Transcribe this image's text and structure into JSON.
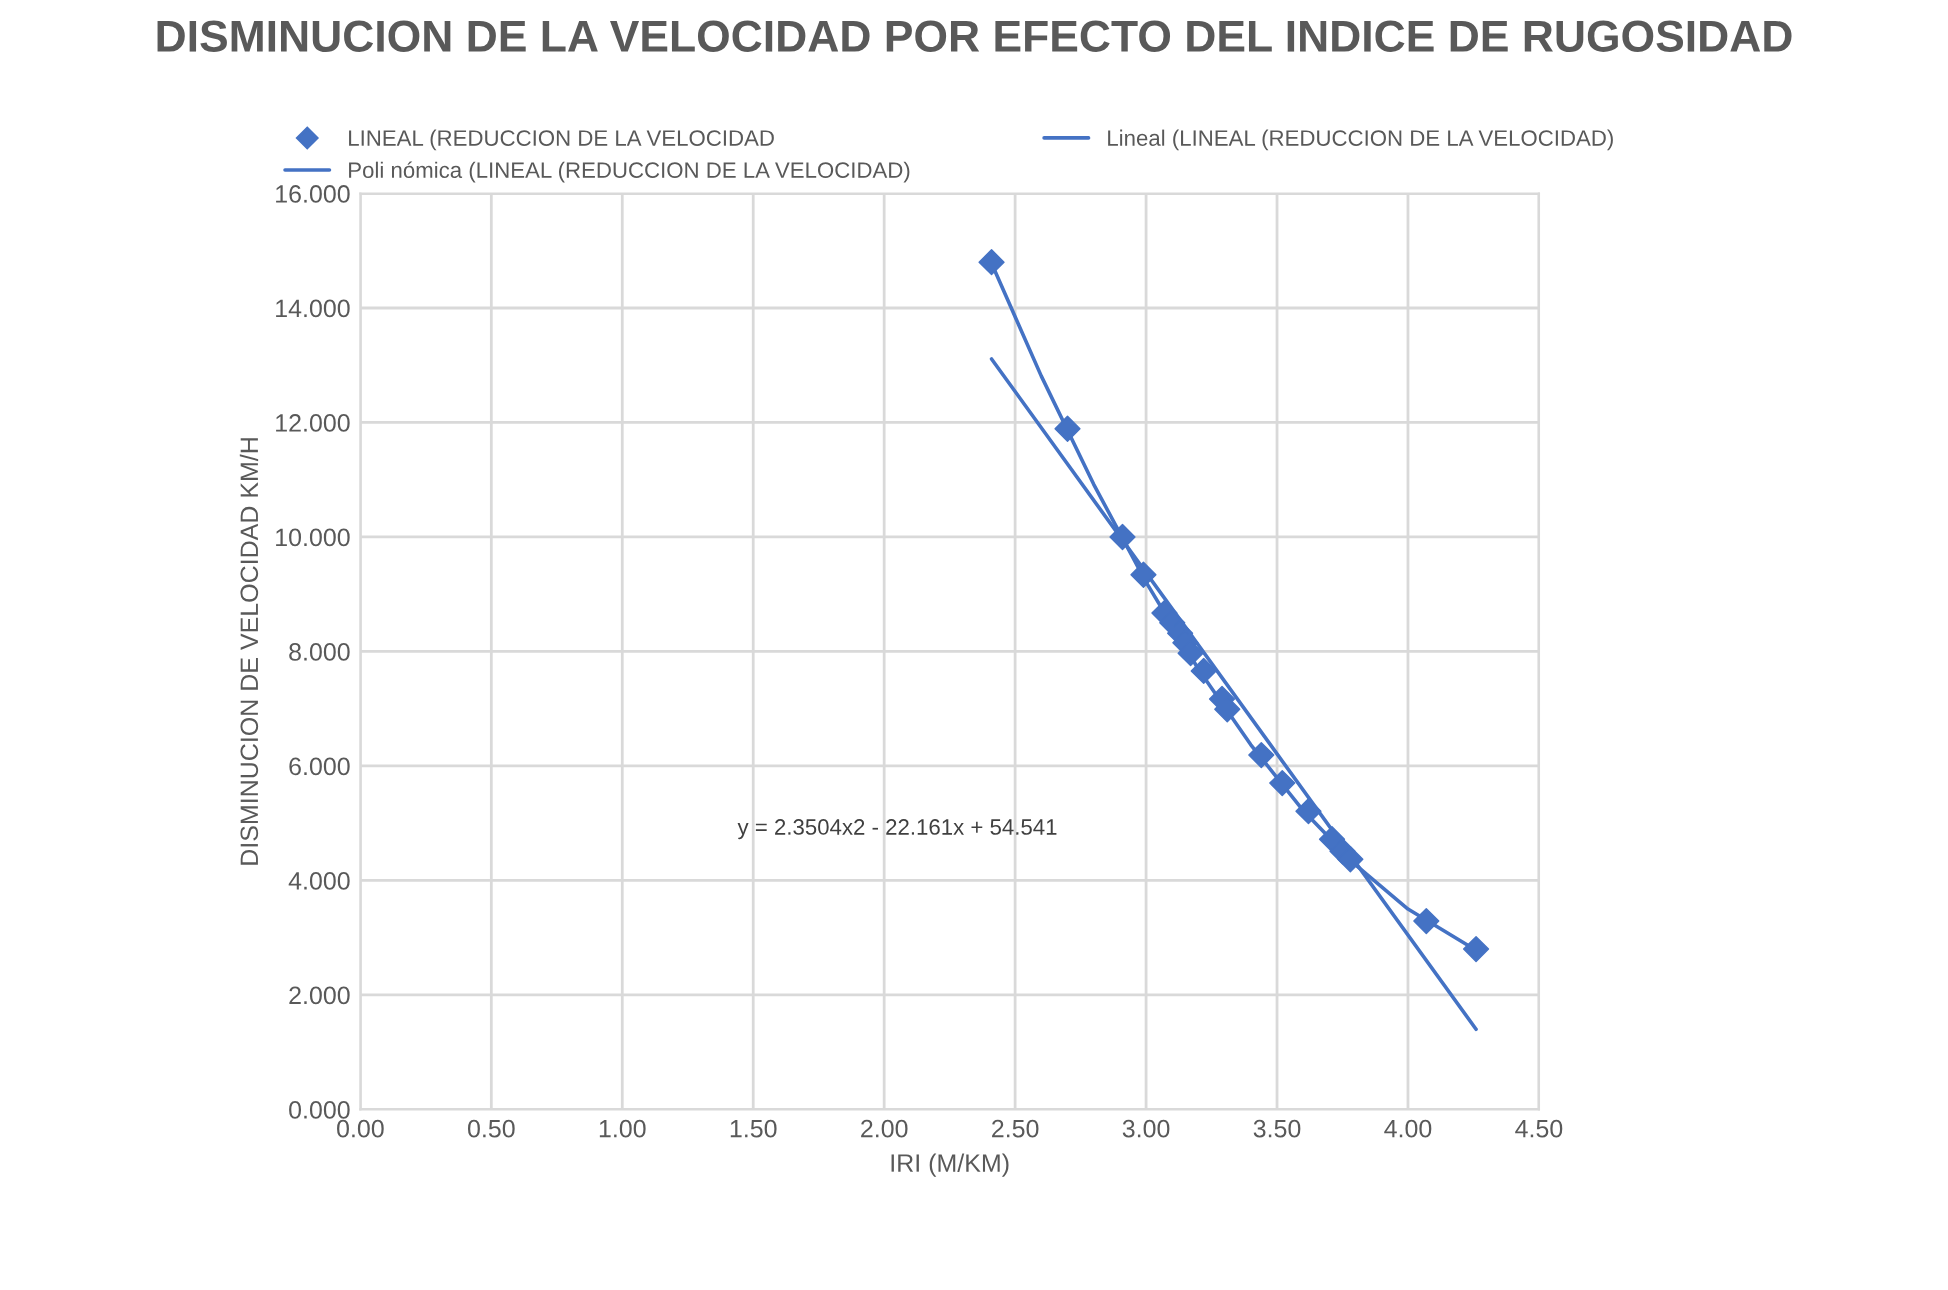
{
  "chart_data": {
    "type": "scatter",
    "title": "DISMINUCION DE LA VELOCIDAD POR EFECTO DEL INDICE DE RUGOSIDAD",
    "xlabel": "IRI (M/KM)",
    "ylabel": "DISMINUCION DE VELOCIDAD KM/H",
    "series": [
      {
        "name": "LINEAL (REDUCCION DE LA VELOCIDAD",
        "marker": "diamond",
        "color": "#4472c4",
        "x": [
          2.41,
          2.7,
          2.91,
          2.99,
          3.07,
          3.1,
          3.13,
          3.15,
          3.17,
          3.22,
          3.29,
          3.31,
          3.44,
          3.52,
          3.62,
          3.71,
          3.75,
          3.78,
          4.07,
          4.26
        ],
        "values": [
          14.8,
          11.89,
          10.0,
          9.34,
          8.67,
          8.5,
          8.32,
          8.15,
          7.97,
          7.66,
          7.17,
          6.99,
          6.19,
          5.7,
          5.21,
          4.72,
          4.51,
          4.37,
          3.29,
          2.8
        ]
      },
      {
        "name": "Poli nómica (LINEAL (REDUCCION DE LA VELOCIDAD)",
        "type": "line",
        "line_style": "solid",
        "color": "#4472c4",
        "x": [
          2.41,
          2.6,
          2.8,
          3.0,
          3.2,
          3.4,
          3.6,
          3.8,
          4.0,
          4.26
        ],
        "values": [
          14.78,
          12.81,
          10.92,
          9.21,
          7.69,
          6.37,
          5.22,
          4.27,
          3.5,
          2.78
        ]
      },
      {
        "name": "Lineal (LINEAL (REDUCCION DE LA VELOCIDAD)",
        "type": "line",
        "line_style": "solid",
        "color": "#4472c4",
        "x": [
          2.41,
          4.26
        ],
        "values": [
          13.11,
          1.4
        ]
      }
    ],
    "annotations": [
      "y = 2.3504x2 - 22.161x + 54.541"
    ],
    "xlim": [
      0,
      4.5
    ],
    "xticks": [
      {
        "value": 0,
        "label": "0.00"
      },
      {
        "value": 0.5,
        "label": "0.50"
      },
      {
        "value": 1,
        "label": "1.00"
      },
      {
        "value": 1.5,
        "label": "1.50"
      },
      {
        "value": 2,
        "label": "2.00"
      },
      {
        "value": 2.5,
        "label": "2.50"
      },
      {
        "value": 3,
        "label": "3.00"
      },
      {
        "value": 3.5,
        "label": "3.50"
      },
      {
        "value": 4,
        "label": "4.00"
      },
      {
        "value": 4.5,
        "label": "4.50"
      }
    ],
    "ylim": [
      0,
      16
    ],
    "yticks": [
      {
        "value": 0,
        "label": "0.000"
      },
      {
        "value": 2,
        "label": "2.000"
      },
      {
        "value": 4,
        "label": "4.000"
      },
      {
        "value": 6,
        "label": "6.000"
      },
      {
        "value": 8,
        "label": "8.000"
      },
      {
        "value": 10,
        "label": "10.000"
      },
      {
        "value": 12,
        "label": "12.000"
      },
      {
        "value": 14,
        "label": "14.000"
      },
      {
        "value": 16,
        "label": "16.000"
      }
    ],
    "grid": true,
    "legend": "top"
  }
}
